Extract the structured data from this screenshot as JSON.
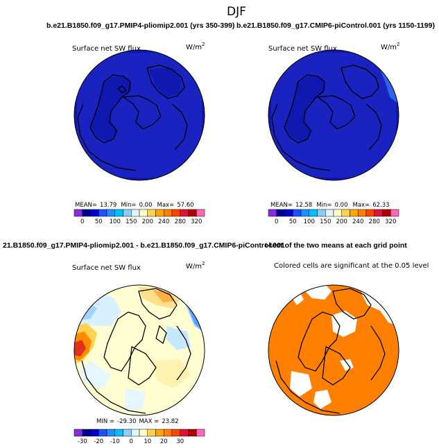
{
  "chart_data": {
    "type": "map",
    "title": "DJF",
    "panels": [
      {
        "id": "p1",
        "header": "b.e21.B1850.f09_g17.PMIP4-pliomip2.001 (yrs 350-399)",
        "variable": "Surface net SW flux",
        "units": "W/m",
        "units_sup": "2",
        "stats_prefix": "MEAN=",
        "mean": "13.79",
        "min_label": "Min=",
        "min": "0.00",
        "max_label": "Max=",
        "max": "57.60",
        "colorbar_ticks": [
          "0",
          "50",
          "100",
          "150",
          "200",
          "240",
          "280",
          "320"
        ]
      },
      {
        "id": "p2",
        "header": "b.e21.B1850.f09_g17.CMIP6-piControl.001 (yrs 1150-1199)",
        "variable": "Surface net SW flux",
        "units": "W/m",
        "units_sup": "2",
        "stats_prefix": "MEAN=",
        "mean": "12.58",
        "min_label": "Min=",
        "min": "0.00",
        "max_label": "Max=",
        "max": "62.33",
        "colorbar_ticks": [
          "0",
          "50",
          "100",
          "150",
          "200",
          "240",
          "280",
          "320"
        ]
      },
      {
        "id": "p3",
        "header": "21.B1850.f09_g17.PMIP4-pliomip2.001 - b.e21.B1850.f09_g17.CMIP6-piControl.001",
        "variable": "Surface net SW flux",
        "units": "W/m",
        "units_sup": "2",
        "min_label": "MIN =",
        "min": "-29.30",
        "max_label": "MAX =",
        "max": "23.82",
        "colorbar_ticks": [
          "-30",
          "-20",
          "-10",
          "0",
          "10",
          "20",
          "30"
        ]
      },
      {
        "id": "p4",
        "header": "t-test of the two means at each grid point",
        "variable": "Colored cells are significant at the 0.05 level"
      }
    ],
    "colorbar_colors": [
      "#8a2be2",
      "#00008b",
      "#0000cd",
      "#1e50ff",
      "#1e90ff",
      "#00bfff",
      "#87cefa",
      "#e0f4ff",
      "#ffffc8",
      "#ffd34d",
      "#ffa500",
      "#ff7f00",
      "#ff4500",
      "#dc143c",
      "#b00000",
      "#ff69b4"
    ],
    "significance_color": "#ff7f00"
  }
}
